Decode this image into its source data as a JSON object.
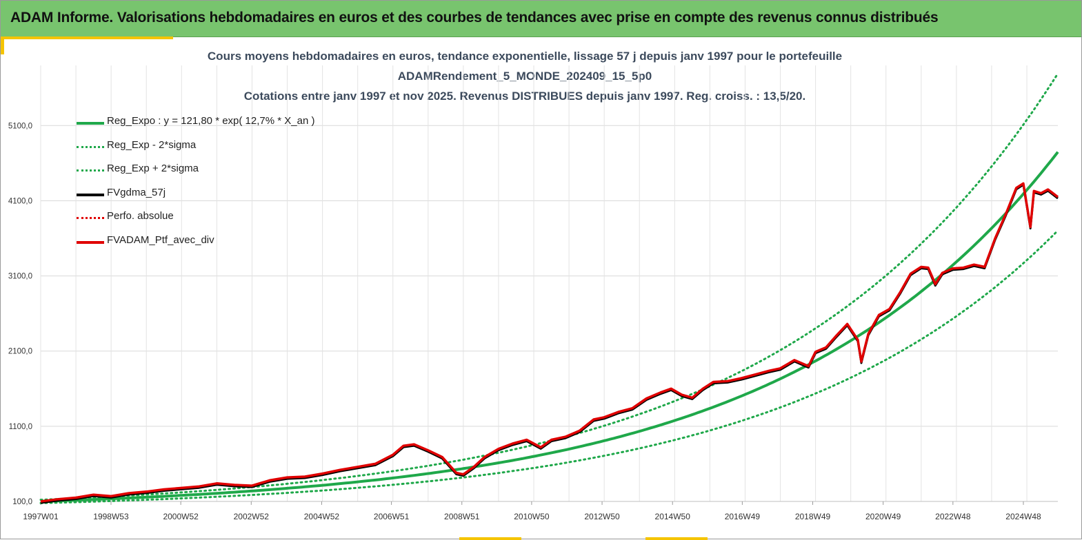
{
  "header": {
    "title": "ADAM Informe. Valorisations hebdomadaires en euros et des courbes de tendances avec prise en compte des revenus connus distribués"
  },
  "colors": {
    "header_bg": "#78c46e",
    "accent": "#f5c400",
    "reg_green": "#1fa84a",
    "ptf_red": "#e00000",
    "gdma_black": "#000000",
    "title_text": "#3c4a5c"
  },
  "chart_data": {
    "type": "line",
    "title_lines": [
      "Cours moyens hebdomadaires  en euros, tendance exponentielle, lissage 57 j depuis janv 1997 pour le portefeuille",
      "ADAMRendement_5_MONDE_202409_15_5p0",
      "Cotations  entre janv 1997 et nov  2025. Revenus DISTRIBUES depuis janv 1997. Reg. croiss. : 13,5/20."
    ],
    "x_tick_labels": [
      "1997W01",
      "1998W53",
      "2000W52",
      "2002W52",
      "2004W52",
      "2006W51",
      "2008W51",
      "2010W50",
      "2012W50",
      "2014W50",
      "2016W49",
      "2018W49",
      "2020W49",
      "2022W48",
      "2024W48"
    ],
    "y_tick_labels": [
      "100,0",
      "1100,0",
      "2100,0",
      "3100,0",
      "4100,0",
      "5100,0"
    ],
    "ylim": [
      100,
      5900
    ],
    "xlim_years": [
      1997.0,
      2025.88
    ],
    "grid": true,
    "legend_position": "top-left",
    "regression_params": {
      "a": 121.8,
      "rate": 0.127,
      "sigma_factor": 0.22
    },
    "series": [
      {
        "name": "Reg_Expo : y = 121,80 * exp( 12,7% *  X_an )",
        "color": "#1fa84a",
        "style": "solid"
      },
      {
        "name": "Reg_Exp - 2*sigma",
        "color": "#1fa84a",
        "style": "dotted"
      },
      {
        "name": "Reg_Exp + 2*sigma",
        "color": "#1fa84a",
        "style": "dotted"
      },
      {
        "name": "FVgdma_57j",
        "color": "#000000",
        "style": "solid"
      },
      {
        "name": "Perfo. absolue",
        "color": "#e00000",
        "style": "dotted"
      },
      {
        "name": "FVADAM_Ptf_avec_div",
        "color": "#e00000",
        "style": "solid",
        "x_years": [
          1997.0,
          1997.5,
          1998.0,
          1998.5,
          1999.0,
          1999.5,
          2000.0,
          2000.5,
          2001.0,
          2001.5,
          2002.0,
          2002.5,
          2003.0,
          2003.5,
          2004.0,
          2004.5,
          2005.0,
          2005.5,
          2006.0,
          2006.5,
          2007.0,
          2007.3,
          2007.6,
          2008.0,
          2008.4,
          2008.8,
          2009.0,
          2009.3,
          2009.6,
          2010.0,
          2010.4,
          2010.8,
          2011.2,
          2011.5,
          2011.9,
          2012.3,
          2012.7,
          2013.0,
          2013.4,
          2013.8,
          2014.2,
          2014.6,
          2014.9,
          2015.2,
          2015.5,
          2015.8,
          2016.1,
          2016.5,
          2016.9,
          2017.3,
          2017.7,
          2018.0,
          2018.4,
          2018.8,
          2019.0,
          2019.3,
          2019.6,
          2019.9,
          2020.2,
          2020.3,
          2020.5,
          2020.8,
          2021.1,
          2021.4,
          2021.7,
          2022.0,
          2022.2,
          2022.4,
          2022.6,
          2022.9,
          2023.2,
          2023.5,
          2023.8,
          2024.1,
          2024.4,
          2024.7,
          2024.9,
          2025.1,
          2025.2,
          2025.4,
          2025.6,
          2025.88
        ],
        "values": [
          100,
          130,
          150,
          190,
          170,
          210,
          230,
          260,
          280,
          300,
          340,
          320,
          310,
          380,
          420,
          430,
          470,
          520,
          560,
          600,
          720,
          840,
          860,
          780,
          690,
          480,
          460,
          560,
          690,
          800,
          870,
          920,
          820,
          920,
          960,
          1040,
          1190,
          1220,
          1290,
          1340,
          1470,
          1550,
          1600,
          1520,
          1480,
          1600,
          1690,
          1700,
          1740,
          1790,
          1840,
          1870,
          1980,
          1900,
          2090,
          2150,
          2310,
          2460,
          2250,
          1960,
          2330,
          2580,
          2660,
          2880,
          3130,
          3220,
          3210,
          2990,
          3140,
          3200,
          3210,
          3250,
          3220,
          3600,
          3920,
          4270,
          4330,
          3750,
          4230,
          4200,
          4250,
          4150
        ]
      }
    ]
  }
}
